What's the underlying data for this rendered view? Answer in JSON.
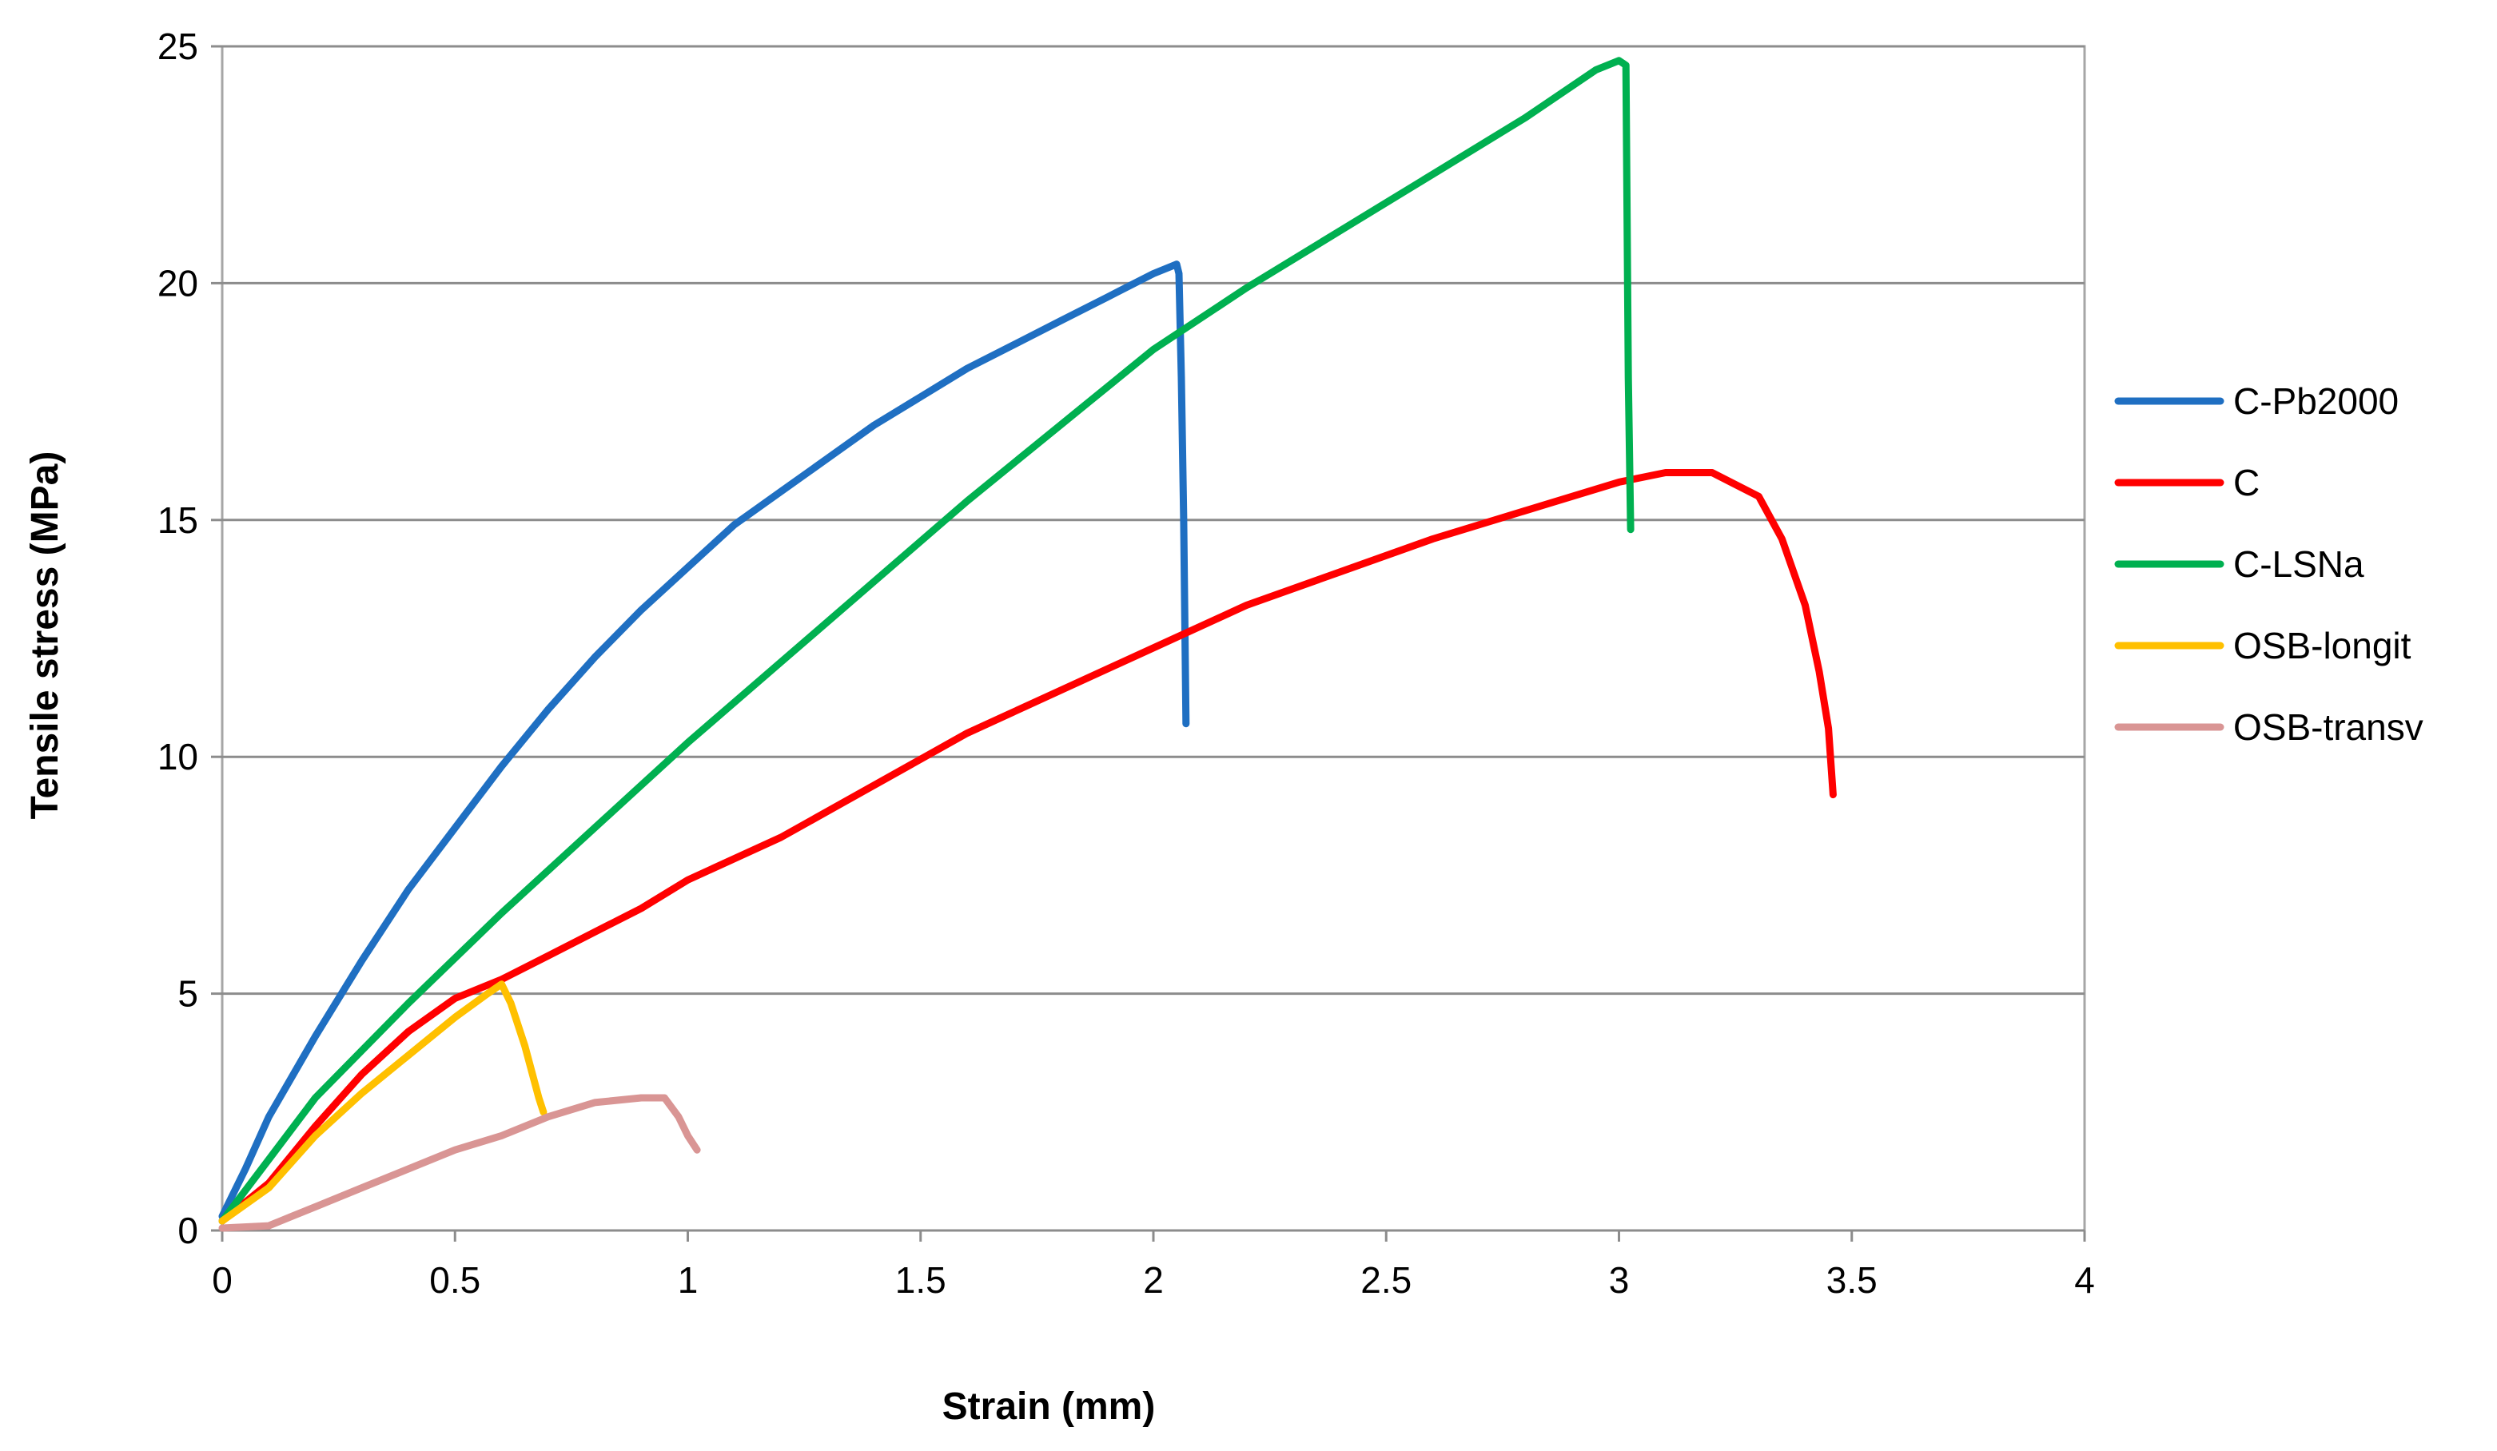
{
  "chart_data": {
    "type": "line",
    "title": "",
    "xlabel": "Strain (mm)",
    "ylabel": "Tensile stress (MPa)",
    "xlim": [
      0,
      4
    ],
    "ylim": [
      0,
      25
    ],
    "xticks": [
      "0",
      "0.5",
      "1",
      "1.5",
      "2",
      "2.5",
      "3",
      "3.5",
      "4"
    ],
    "yticks": [
      "0",
      "5",
      "10",
      "15",
      "20",
      "25"
    ],
    "grid": "horizontal",
    "legend_position": "right",
    "series": [
      {
        "name": "C-Pb2000",
        "color": "#1f6fc2",
        "points": [
          [
            0,
            0.3
          ],
          [
            0.05,
            1.3
          ],
          [
            0.1,
            2.4
          ],
          [
            0.2,
            4.1
          ],
          [
            0.3,
            5.7
          ],
          [
            0.4,
            7.2
          ],
          [
            0.5,
            8.5
          ],
          [
            0.6,
            9.8
          ],
          [
            0.7,
            11
          ],
          [
            0.8,
            12.1
          ],
          [
            0.9,
            13.1
          ],
          [
            1,
            14
          ],
          [
            1.1,
            14.9
          ],
          [
            1.2,
            15.6
          ],
          [
            1.3,
            16.3
          ],
          [
            1.4,
            17
          ],
          [
            1.5,
            17.6
          ],
          [
            1.6,
            18.2
          ],
          [
            1.7,
            18.7
          ],
          [
            1.8,
            19.2
          ],
          [
            1.9,
            19.7
          ],
          [
            2,
            20.2
          ],
          [
            2.05,
            20.4
          ],
          [
            2.055,
            20.2
          ],
          [
            2.06,
            18
          ],
          [
            2.065,
            15
          ],
          [
            2.07,
            10.7
          ]
        ]
      },
      {
        "name": "C",
        "color": "#ff0000",
        "points": [
          [
            0,
            0.2
          ],
          [
            0.1,
            1
          ],
          [
            0.2,
            2.2
          ],
          [
            0.3,
            3.3
          ],
          [
            0.4,
            4.2
          ],
          [
            0.5,
            4.9
          ],
          [
            0.6,
            5.3
          ],
          [
            0.7,
            5.8
          ],
          [
            0.8,
            6.3
          ],
          [
            0.9,
            6.8
          ],
          [
            1,
            7.4
          ],
          [
            1.2,
            8.3
          ],
          [
            1.4,
            9.4
          ],
          [
            1.6,
            10.5
          ],
          [
            1.8,
            11.4
          ],
          [
            2,
            12.3
          ],
          [
            2.2,
            13.2
          ],
          [
            2.4,
            13.9
          ],
          [
            2.6,
            14.6
          ],
          [
            2.8,
            15.2
          ],
          [
            3,
            15.8
          ],
          [
            3.1,
            16
          ],
          [
            3.2,
            16
          ],
          [
            3.3,
            15.5
          ],
          [
            3.35,
            14.6
          ],
          [
            3.4,
            13.2
          ],
          [
            3.43,
            11.8
          ],
          [
            3.45,
            10.6
          ],
          [
            3.46,
            9.2
          ]
        ]
      },
      {
        "name": "C-LSNa",
        "color": "#00b050",
        "points": [
          [
            0,
            0.2
          ],
          [
            0.1,
            1.5
          ],
          [
            0.2,
            2.8
          ],
          [
            0.4,
            4.8
          ],
          [
            0.6,
            6.7
          ],
          [
            0.8,
            8.5
          ],
          [
            1,
            10.3
          ],
          [
            1.2,
            12
          ],
          [
            1.4,
            13.7
          ],
          [
            1.6,
            15.4
          ],
          [
            1.8,
            17
          ],
          [
            2,
            18.6
          ],
          [
            2.2,
            19.9
          ],
          [
            2.4,
            21.1
          ],
          [
            2.6,
            22.3
          ],
          [
            2.8,
            23.5
          ],
          [
            2.95,
            24.5
          ],
          [
            3,
            24.7
          ],
          [
            3.015,
            24.6
          ],
          [
            3.02,
            18
          ],
          [
            3.025,
            14.8
          ]
        ]
      },
      {
        "name": "OSB-longit",
        "color": "#ffc000",
        "points": [
          [
            0,
            0.2
          ],
          [
            0.1,
            0.9
          ],
          [
            0.2,
            2
          ],
          [
            0.3,
            2.9
          ],
          [
            0.4,
            3.7
          ],
          [
            0.5,
            4.5
          ],
          [
            0.57,
            5
          ],
          [
            0.6,
            5.2
          ],
          [
            0.62,
            4.8
          ],
          [
            0.65,
            3.9
          ],
          [
            0.68,
            2.8
          ],
          [
            0.69,
            2.5
          ]
        ]
      },
      {
        "name": "OSB-transv",
        "color": "#d99594",
        "points": [
          [
            0,
            0.05
          ],
          [
            0.1,
            0.1
          ],
          [
            0.15,
            0.3
          ],
          [
            0.2,
            0.5
          ],
          [
            0.3,
            0.9
          ],
          [
            0.4,
            1.3
          ],
          [
            0.5,
            1.7
          ],
          [
            0.6,
            2
          ],
          [
            0.7,
            2.4
          ],
          [
            0.8,
            2.7
          ],
          [
            0.9,
            2.8
          ],
          [
            0.95,
            2.8
          ],
          [
            0.98,
            2.4
          ],
          [
            1,
            2
          ],
          [
            1.02,
            1.7
          ]
        ]
      }
    ]
  }
}
